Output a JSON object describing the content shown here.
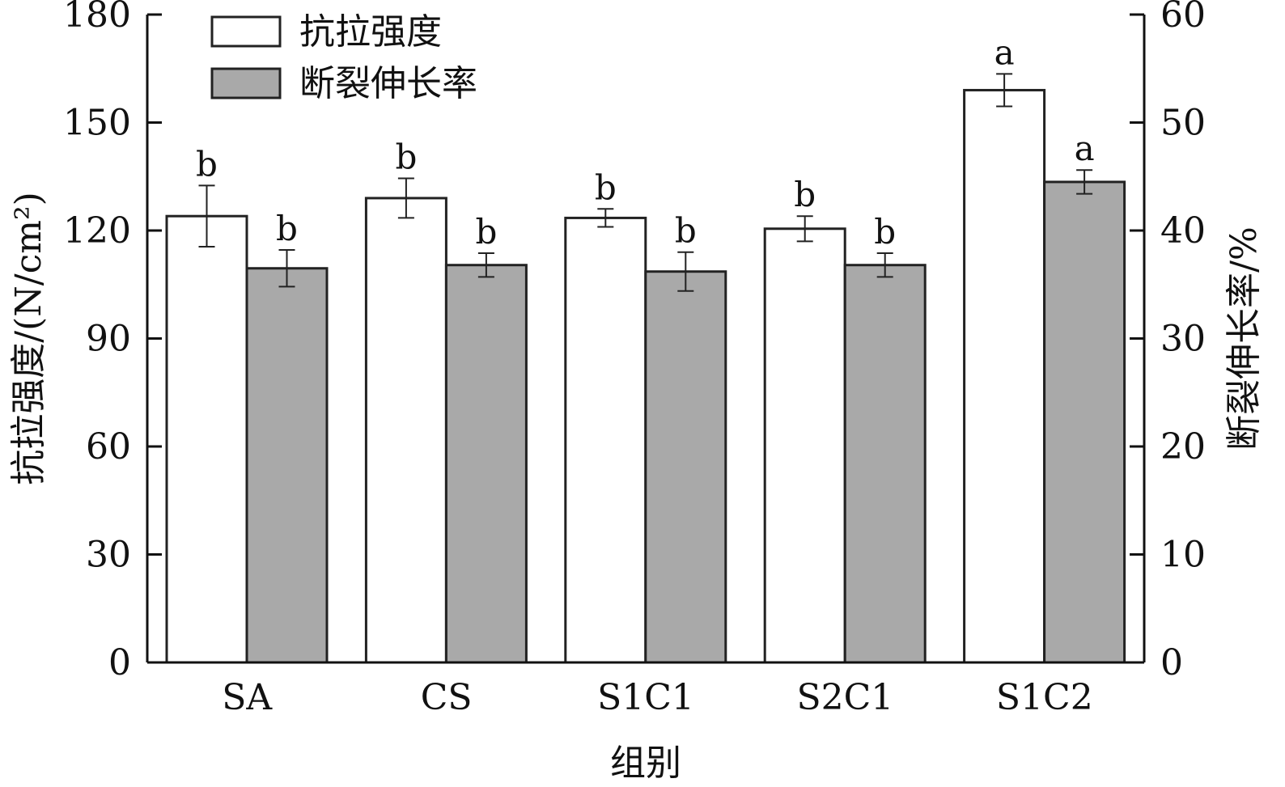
{
  "chart_data": {
    "type": "bar",
    "categories": [
      "SA",
      "CS",
      "S1C1",
      "S2C1",
      "S1C2"
    ],
    "xlabel": "组别",
    "ylabel_left": "抗拉强度/(N/cm²)",
    "ylabel_right": "断裂伸长率/%",
    "ylim_left": [
      0,
      180
    ],
    "ylim_right": [
      0,
      60
    ],
    "yticks_left": [
      0,
      30,
      60,
      90,
      120,
      150,
      180
    ],
    "yticks_right": [
      0,
      10,
      20,
      30,
      40,
      50,
      60
    ],
    "legend_position": "top-left",
    "grid": false,
    "series": [
      {
        "name": "抗拉强度",
        "axis": "left",
        "color": "#ffffff",
        "values": [
          124,
          129,
          123.5,
          120.5,
          159
        ],
        "errors": [
          8.5,
          5.5,
          2.5,
          3.5,
          4.5
        ],
        "labels": [
          "b",
          "b",
          "b",
          "b",
          "a"
        ]
      },
      {
        "name": "断裂伸长率",
        "axis": "right",
        "color": "#a9a9a9",
        "values": [
          36.5,
          36.8,
          36.2,
          36.8,
          44.5
        ],
        "errors": [
          1.7,
          1.1,
          1.8,
          1.1,
          1.1
        ],
        "labels": [
          "b",
          "b",
          "b",
          "b",
          "a"
        ]
      }
    ]
  }
}
